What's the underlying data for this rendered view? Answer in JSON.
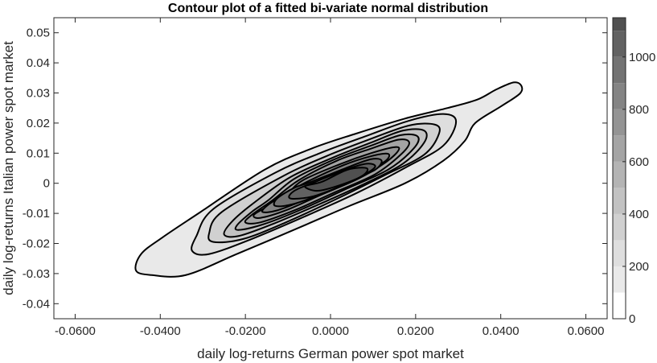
{
  "chart_data": {
    "type": "contour",
    "title": "Contour plot of a fitted bi-variate normal distribution",
    "xlabel": "daily log-returns German power spot market",
    "ylabel": "daily log-returns Italian power spot market",
    "xlim": [
      -0.065,
      0.065
    ],
    "ylim": [
      -0.045,
      0.055
    ],
    "x_ticks": [
      {
        "value": -0.06,
        "label": "-0.0600"
      },
      {
        "value": -0.04,
        "label": "-0.0400"
      },
      {
        "value": -0.02,
        "label": "-0.0200"
      },
      {
        "value": 0.0,
        "label": "0.0000"
      },
      {
        "value": 0.02,
        "label": "0.0200"
      },
      {
        "value": 0.04,
        "label": "0.0400"
      },
      {
        "value": 0.06,
        "label": "0.0600"
      }
    ],
    "y_ticks": [
      {
        "value": 0.05,
        "label": "0.05"
      },
      {
        "value": 0.04,
        "label": "0.04"
      },
      {
        "value": 0.03,
        "label": "0.03"
      },
      {
        "value": 0.02,
        "label": "0.02"
      },
      {
        "value": 0.01,
        "label": "0.01"
      },
      {
        "value": 0.0,
        "label": "0"
      },
      {
        "value": -0.01,
        "label": "-0.01"
      },
      {
        "value": -0.02,
        "label": "-0.02"
      },
      {
        "value": -0.03,
        "label": "-0.03"
      },
      {
        "value": -0.04,
        "label": "-0.04"
      }
    ],
    "grid": false,
    "contour_levels": [
      {
        "level": 100,
        "color": "#e9e9e9"
      },
      {
        "level": 200,
        "color": "#dedede"
      },
      {
        "level": 300,
        "color": "#d0d0d0"
      },
      {
        "level": 400,
        "color": "#c2c2c2"
      },
      {
        "level": 500,
        "color": "#b4b4b4"
      },
      {
        "level": 600,
        "color": "#a4a4a4"
      },
      {
        "level": 700,
        "color": "#949494"
      },
      {
        "level": 800,
        "color": "#848484"
      },
      {
        "level": 900,
        "color": "#737373"
      },
      {
        "level": 1000,
        "color": "#626262"
      },
      {
        "level": 1100,
        "color": "#505050"
      }
    ],
    "contour_regions": [
      {
        "level": 100,
        "x": [
          -0.0155,
          -0.0045,
          0.006,
          0.0175,
          0.0275,
          0.0345,
          0.039,
          0.043,
          0.0448,
          0.0445,
          0.04,
          0.034,
          0.0315,
          0.0265,
          0.0175,
          0.0045,
          -0.007,
          -0.022,
          -0.034,
          -0.042,
          -0.0457,
          -0.0445,
          -0.0395,
          -0.0305
        ],
        "y": [
          0.0045,
          0.0115,
          0.0165,
          0.0215,
          0.025,
          0.0278,
          0.0312,
          0.0335,
          0.0325,
          0.0298,
          0.0255,
          0.02,
          0.014,
          0.0075,
          0.0,
          -0.0075,
          -0.0145,
          -0.0235,
          -0.0305,
          -0.0305,
          -0.029,
          -0.0235,
          -0.018,
          -0.0095
        ]
      },
      {
        "level": 200,
        "x": [
          -0.013,
          -0.0025,
          0.008,
          0.0185,
          0.0265,
          0.0295,
          0.0265,
          0.018,
          0.0065,
          -0.006,
          -0.0185,
          -0.0285,
          -0.0325,
          -0.0315,
          -0.0275
        ],
        "y": [
          0.0035,
          0.01,
          0.0155,
          0.0208,
          0.023,
          0.0205,
          0.0125,
          0.0055,
          -0.003,
          -0.011,
          -0.0185,
          -0.0235,
          -0.0225,
          -0.0175,
          -0.0085
        ]
      },
      {
        "level": 300,
        "x": [
          -0.011,
          -0.001,
          0.009,
          0.0185,
          0.0245,
          0.0255,
          0.022,
          0.0125,
          0.001,
          -0.0105,
          -0.0205,
          -0.0275,
          -0.0285,
          -0.0255
        ],
        "y": [
          0.0025,
          0.009,
          0.0145,
          0.0192,
          0.0195,
          0.0165,
          0.0095,
          0.0025,
          -0.0055,
          -0.013,
          -0.0185,
          -0.0195,
          -0.0165,
          -0.0095
        ]
      },
      {
        "level": 400,
        "x": [
          -0.0095,
          0.0005,
          0.0095,
          0.017,
          0.022,
          0.022,
          0.017,
          0.0075,
          -0.0035,
          -0.0135,
          -0.0215,
          -0.025,
          -0.023,
          -0.018
        ],
        "y": [
          0.002,
          0.0085,
          0.0135,
          0.0175,
          0.0175,
          0.0135,
          0.0065,
          -0.0005,
          -0.0075,
          -0.0135,
          -0.0175,
          -0.017,
          -0.0125,
          -0.0065
        ]
      },
      {
        "level": 500,
        "x": [
          -0.0085,
          0.001,
          0.0095,
          0.0165,
          0.0205,
          0.0195,
          0.0135,
          0.0035,
          -0.0065,
          -0.0155,
          -0.0215,
          -0.022,
          -0.0185,
          -0.0145
        ],
        "y": [
          0.0015,
          0.008,
          0.0125,
          0.016,
          0.0155,
          0.0115,
          0.0045,
          -0.002,
          -0.0085,
          -0.0135,
          -0.0155,
          -0.014,
          -0.0095,
          -0.0055
        ]
      },
      {
        "level": 600,
        "x": [
          -0.0075,
          0.0015,
          0.0095,
          0.016,
          0.0185,
          0.0165,
          0.0105,
          0.001,
          -0.0085,
          -0.0165,
          -0.02,
          -0.0185,
          -0.0135
        ],
        "y": [
          0.001,
          0.0075,
          0.0115,
          0.0145,
          0.0135,
          0.0095,
          0.003,
          -0.003,
          -0.009,
          -0.013,
          -0.013,
          -0.0105,
          -0.0055
        ]
      },
      {
        "level": 700,
        "x": [
          -0.0065,
          0.0025,
          0.0095,
          0.015,
          0.016,
          0.013,
          0.0065,
          -0.0025,
          -0.0105,
          -0.0165,
          -0.018,
          -0.0145,
          -0.0105
        ],
        "y": [
          0.001,
          0.0065,
          0.01,
          0.012,
          0.011,
          0.007,
          0.0015,
          -0.004,
          -0.009,
          -0.0115,
          -0.0105,
          -0.0075,
          -0.004
        ]
      },
      {
        "level": 800,
        "x": [
          -0.0055,
          0.003,
          0.0095,
          0.0135,
          0.013,
          0.0085,
          0.0015,
          -0.006,
          -0.0125,
          -0.016,
          -0.0145,
          -0.0105
        ],
        "y": [
          0.0005,
          0.006,
          0.009,
          0.0098,
          0.0075,
          0.004,
          -0.001,
          -0.0055,
          -0.009,
          -0.0095,
          -0.007,
          -0.0035
        ]
      },
      {
        "level": 900,
        "x": [
          -0.0045,
          0.0035,
          0.0095,
          0.012,
          0.0105,
          0.005,
          -0.002,
          -0.009,
          -0.013,
          -0.0125,
          -0.0085
        ],
        "y": [
          0.0005,
          0.005,
          0.008,
          0.0075,
          0.0045,
          0.001,
          -0.0035,
          -0.007,
          -0.0075,
          -0.005,
          -0.0015
        ]
      },
      {
        "level": 1000,
        "x": [
          -0.0035,
          0.0035,
          0.0085,
          0.0105,
          0.0075,
          0.0015,
          -0.0045,
          -0.0095,
          -0.0085
        ],
        "y": [
          0.0005,
          0.0045,
          0.0065,
          0.0055,
          0.0025,
          -0.0015,
          -0.0045,
          -0.005,
          -0.0025
        ]
      },
      {
        "level": 1100,
        "x": [
          -0.002,
          0.004,
          0.0085,
          0.0075,
          0.0025,
          -0.003,
          -0.006
        ],
        "y": [
          0.0005,
          0.0045,
          0.005,
          0.0025,
          -0.0005,
          -0.0025,
          -0.001
        ]
      }
    ],
    "colorbar": {
      "min": 0,
      "max": 1150,
      "ticks": [
        {
          "value": 0,
          "label": "0"
        },
        {
          "value": 200,
          "label": "200"
        },
        {
          "value": 400,
          "label": "400"
        },
        {
          "value": 600,
          "label": "600"
        },
        {
          "value": 800,
          "label": "800"
        },
        {
          "value": 1000,
          "label": "1000"
        }
      ],
      "bands": [
        {
          "from": 0,
          "to": 100,
          "color": "#ffffff"
        },
        {
          "from": 100,
          "to": 200,
          "color": "#e9e9e9"
        },
        {
          "from": 200,
          "to": 300,
          "color": "#dedede"
        },
        {
          "from": 300,
          "to": 400,
          "color": "#d0d0d0"
        },
        {
          "from": 400,
          "to": 500,
          "color": "#c2c2c2"
        },
        {
          "from": 500,
          "to": 600,
          "color": "#b4b4b4"
        },
        {
          "from": 600,
          "to": 700,
          "color": "#a4a4a4"
        },
        {
          "from": 700,
          "to": 800,
          "color": "#949494"
        },
        {
          "from": 800,
          "to": 900,
          "color": "#848484"
        },
        {
          "from": 900,
          "to": 1000,
          "color": "#737373"
        },
        {
          "from": 1000,
          "to": 1100,
          "color": "#626262"
        },
        {
          "from": 1100,
          "to": 1150,
          "color": "#505050"
        }
      ]
    }
  }
}
